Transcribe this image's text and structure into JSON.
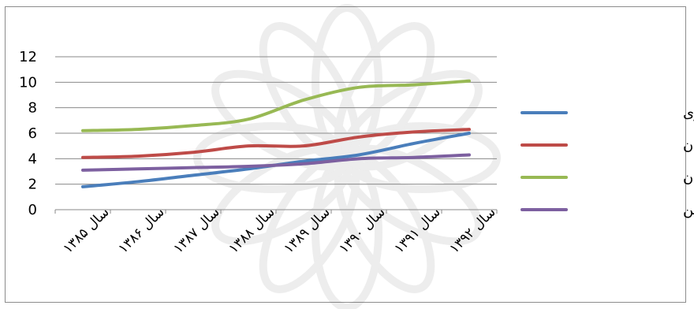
{
  "chart_data": {
    "type": "line",
    "categories": [
      "سال ۱۳۸۵",
      "سال ۱۳۸۶",
      "سال ۱۳۸۷",
      "سال ۱۳۸۸",
      "سال ۱۳۸۹",
      "سال ۱۳۹۰",
      "سال ۱۳۹۱",
      "سال ۱۳۹۲"
    ],
    "series": [
      {
        "name": "سرمایه گذاری",
        "color": "#4a7ebb",
        "values": [
          1.8,
          2.2,
          2.7,
          3.2,
          3.8,
          4.3,
          5.2,
          6.0
        ]
      },
      {
        "name": "خارج از استان",
        "color": "#be4b48",
        "values": [
          4.1,
          4.2,
          4.5,
          5.0,
          5.0,
          5.7,
          6.1,
          6.3
        ]
      },
      {
        "name": "داخل استان",
        "color": "#98b954",
        "values": [
          6.2,
          6.3,
          6.6,
          7.1,
          8.6,
          9.6,
          9.8,
          10.1
        ]
      },
      {
        "name": "شاغلین",
        "color": "#7d60a0",
        "values": [
          3.1,
          3.2,
          3.3,
          3.4,
          3.6,
          4.0,
          4.1,
          4.3
        ]
      }
    ],
    "y_ticks": [
      "0",
      "2",
      "4",
      "6",
      "8",
      "10",
      "12"
    ],
    "ylim": [
      0,
      12
    ],
    "grid": true,
    "legend_position": "right"
  }
}
